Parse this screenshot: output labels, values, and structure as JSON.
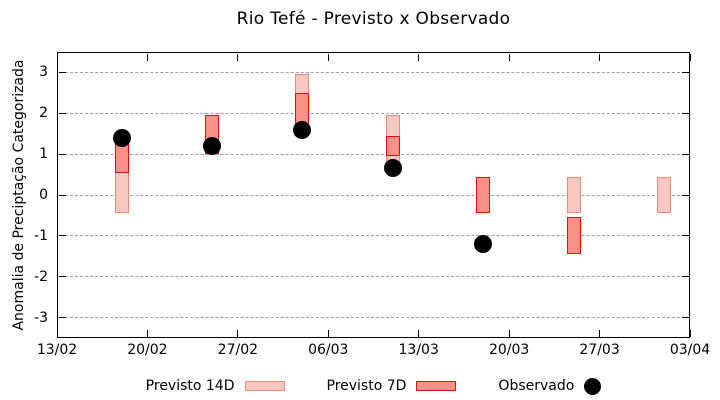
{
  "chart_data": {
    "type": "bar",
    "title": "Rio Tefé - Previsto x Observado",
    "xlabel": "",
    "ylabel": "Anomalia de Preciptação Categorizada",
    "ylim": [
      -3.5,
      3.5
    ],
    "yticks": [
      -3,
      -2,
      -1,
      0,
      1,
      2,
      3
    ],
    "x_range_days": [
      0,
      49
    ],
    "xticks_days": [
      0,
      7,
      14,
      21,
      28,
      35,
      42,
      49
    ],
    "xtick_labels": [
      "13/02",
      "20/02",
      "27/02",
      "06/03",
      "13/03",
      "20/03",
      "27/03",
      "03/04"
    ],
    "grid": true,
    "legend_position": "bottom",
    "colors": {
      "previsto_14d_fill": "#FAC8C2",
      "previsto_14d_border": "#F08878",
      "previsto_7d_fill": "#FA908A",
      "previsto_7d_border": "#E60E0E",
      "observado": "#000000",
      "gridline": "#9e9e9e",
      "axis": "#000000"
    },
    "series": [
      {
        "name": "Previsto 14D",
        "mark": "range-bar",
        "color": "#FAC8C2",
        "border": "#F08878",
        "points": [
          {
            "day": 5,
            "low": -0.45,
            "high": 1.3
          },
          {
            "day": 19,
            "low": 1.5,
            "high": 2.95
          },
          {
            "day": 26,
            "low": 0.55,
            "high": 1.95
          },
          {
            "day": 40,
            "low": -0.45,
            "high": 0.45
          },
          {
            "day": 47,
            "low": -0.45,
            "high": 0.45
          }
        ]
      },
      {
        "name": "Previsto 7D",
        "mark": "range-bar",
        "color": "#FA908A",
        "border": "#E60E0E",
        "points": [
          {
            "day": 5,
            "low": 0.55,
            "high": 1.3
          },
          {
            "day": 12,
            "low": 1.0,
            "high": 1.95
          },
          {
            "day": 19,
            "low": 1.5,
            "high": 2.5
          },
          {
            "day": 26,
            "low": 0.95,
            "high": 1.45
          },
          {
            "day": 33,
            "low": -0.45,
            "high": 0.45
          },
          {
            "day": 40,
            "low": -1.45,
            "high": -0.55
          }
        ]
      },
      {
        "name": "Observado",
        "mark": "scatter",
        "color": "#000000",
        "points": [
          {
            "day": 5,
            "value": 1.4
          },
          {
            "day": 12,
            "value": 1.2
          },
          {
            "day": 19,
            "value": 1.6
          },
          {
            "day": 26,
            "value": 0.65
          },
          {
            "day": 33,
            "value": -1.2
          }
        ]
      }
    ]
  }
}
